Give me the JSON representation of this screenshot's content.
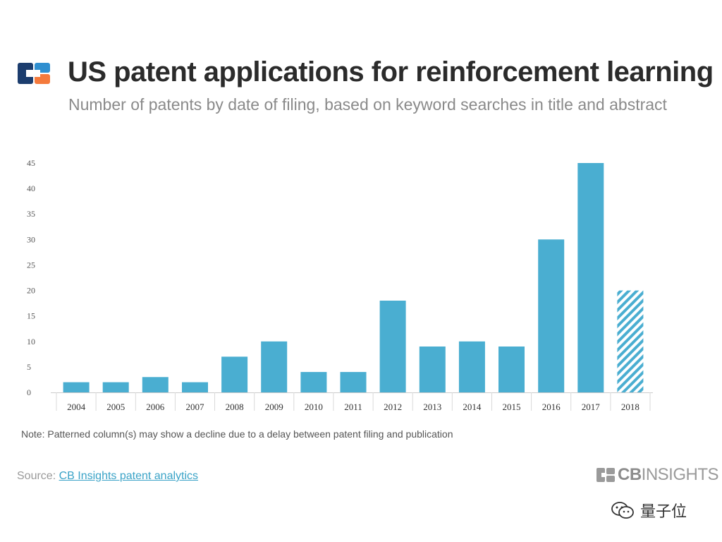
{
  "header": {
    "title": "US patent applications for reinforcement learning",
    "subtitle": "Number of patents by date of filing, based on keyword searches in title and abstract"
  },
  "chart_data": {
    "type": "bar",
    "categories": [
      "2004",
      "2005",
      "2006",
      "2007",
      "2008",
      "2009",
      "2010",
      "2011",
      "2012",
      "2013",
      "2014",
      "2015",
      "2016",
      "2017",
      "2018"
    ],
    "values": [
      2,
      2,
      3,
      2,
      7,
      10,
      4,
      4,
      18,
      9,
      10,
      9,
      30,
      45,
      20
    ],
    "patterned": [
      false,
      false,
      false,
      false,
      false,
      false,
      false,
      false,
      false,
      false,
      false,
      false,
      false,
      false,
      true
    ],
    "yticks": [
      0,
      5,
      10,
      15,
      20,
      25,
      30,
      35,
      40,
      45
    ],
    "ylim": [
      0,
      45
    ],
    "title": "US patent applications for reinforcement learning",
    "subtitle": "Number of patents by date of filing, based on keyword searches in title and abstract",
    "xlabel": "",
    "ylabel": "",
    "grid": false,
    "bar_color": "#4aaed1"
  },
  "footer": {
    "note": "Note: Patterned column(s) may show a decline due to a delay between patent filing and publication",
    "source_prefix": "Source: ",
    "source_link": "CB Insights patent analytics",
    "brand_bold": "CB",
    "brand_rest": "INSIGHTS",
    "watermark": "量子位"
  },
  "colors": {
    "logo_navy": "#1c3d6e",
    "logo_blue": "#2f8fd0",
    "logo_orange": "#f47a3c",
    "link": "#3aa3c7"
  },
  "icons": {
    "logo": "cb-insights-logo-icon",
    "brand": "cb-insights-mark-icon",
    "watermark": "wechat-icon"
  }
}
